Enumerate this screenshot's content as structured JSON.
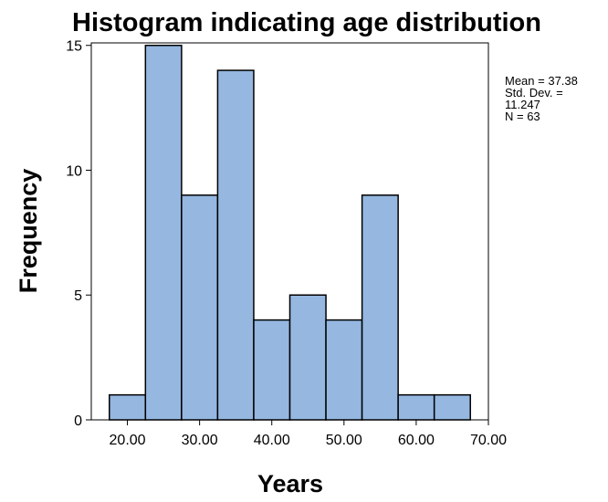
{
  "chart_data": {
    "type": "bar",
    "title": "Histogram indicating age distribution",
    "xlabel": "Years",
    "ylabel": "Frequency",
    "bins": [
      {
        "start": 17.5,
        "end": 22.5,
        "count": 1
      },
      {
        "start": 22.5,
        "end": 27.5,
        "count": 15
      },
      {
        "start": 27.5,
        "end": 32.5,
        "count": 9
      },
      {
        "start": 32.5,
        "end": 37.5,
        "count": 14
      },
      {
        "start": 37.5,
        "end": 42.5,
        "count": 4
      },
      {
        "start": 42.5,
        "end": 47.5,
        "count": 5
      },
      {
        "start": 47.5,
        "end": 52.5,
        "count": 4
      },
      {
        "start": 52.5,
        "end": 57.5,
        "count": 9
      },
      {
        "start": 57.5,
        "end": 62.5,
        "count": 1
      },
      {
        "start": 62.5,
        "end": 67.5,
        "count": 1
      }
    ],
    "x_ticks": [
      20,
      30,
      40,
      50,
      60,
      70
    ],
    "x_tick_labels": [
      "20.00",
      "30.00",
      "40.00",
      "50.00",
      "60.00",
      "70.00"
    ],
    "y_ticks": [
      0,
      5,
      10,
      15
    ],
    "y_tick_labels": [
      "0",
      "5",
      "10",
      "15"
    ],
    "xlim": [
      15,
      70
    ],
    "ylim": [
      0,
      15.1
    ],
    "grid": false,
    "bar_color": "#95b7e0",
    "bar_edge_color": "#000000",
    "stats": {
      "lines": [
        "Mean = 37.38",
        "Std. Dev. =",
        "11.247",
        "N = 63"
      ]
    }
  }
}
